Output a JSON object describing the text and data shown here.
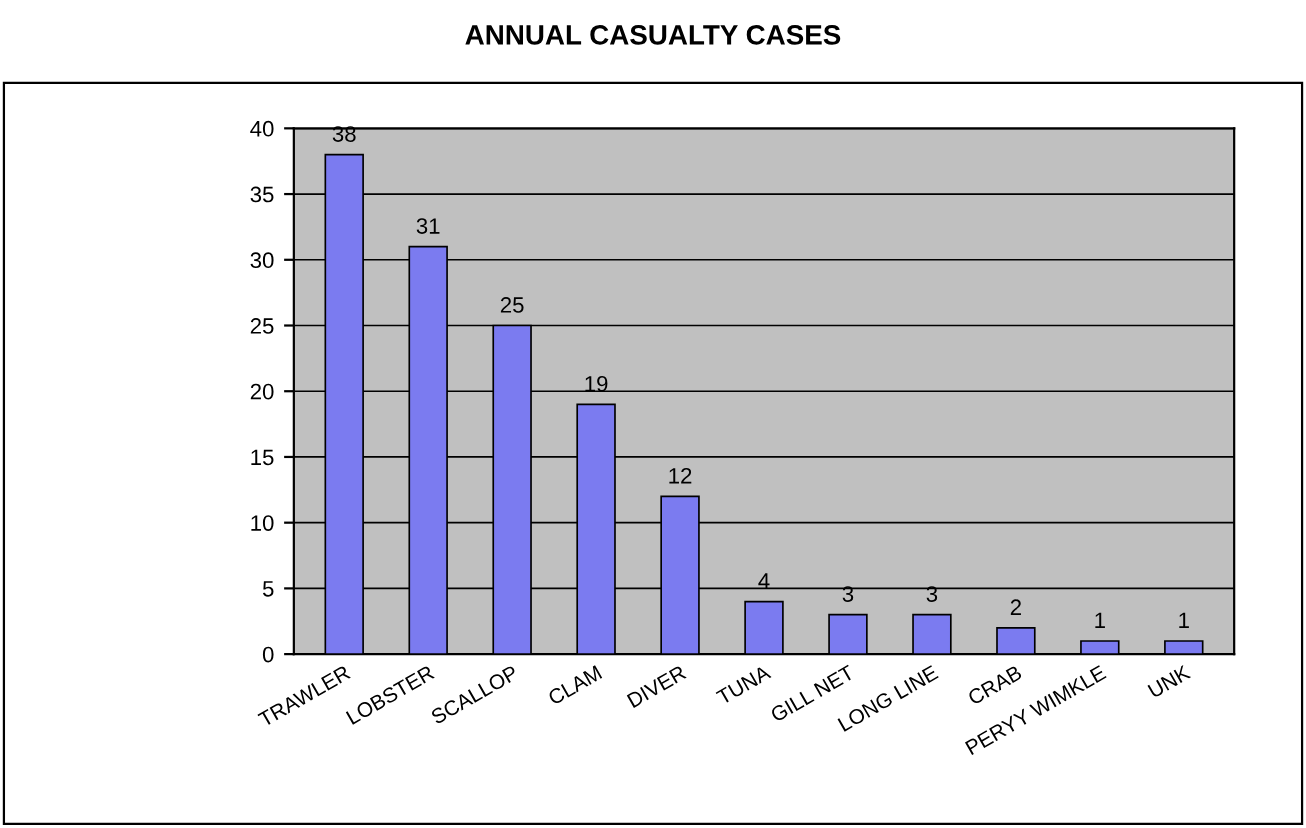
{
  "chart_data": {
    "type": "bar",
    "title": "ANNUAL CASUALTY CASES",
    "categories": [
      "TRAWLER",
      "LOBSTER",
      "SCALLOP",
      "CLAM",
      "DIVER",
      "TUNA",
      "GILL NET",
      "LONG LINE",
      "CRAB",
      "PERYY WIMKLE",
      "UNK"
    ],
    "values": [
      38,
      31,
      25,
      19,
      12,
      4,
      3,
      3,
      2,
      1,
      1
    ],
    "color": "#7b7bf0",
    "ylim": [
      0,
      40
    ],
    "yticks": [
      0,
      5,
      10,
      15,
      20,
      25,
      30,
      35,
      40
    ],
    "grid": "y",
    "data_labels": true
  }
}
